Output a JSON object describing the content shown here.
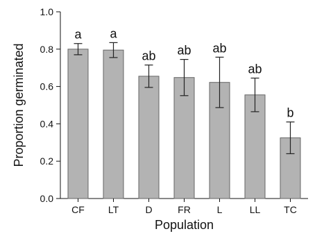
{
  "chart_data": {
    "type": "bar",
    "xlabel": "Population",
    "ylabel": "Proportion germinated",
    "ylim": [
      0,
      1.0
    ],
    "yticks": [
      0.0,
      0.2,
      0.4,
      0.6,
      0.8,
      1.0
    ],
    "ytick_labels": [
      "0.0",
      "0.2",
      "0.4",
      "0.6",
      "0.8",
      "1.0"
    ],
    "categories": [
      "CF",
      "LT",
      "D",
      "FR",
      "L",
      "LL",
      "TC"
    ],
    "values": [
      0.8,
      0.795,
      0.655,
      0.648,
      0.622,
      0.555,
      0.325
    ],
    "errors": [
      0.03,
      0.04,
      0.06,
      0.097,
      0.135,
      0.09,
      0.085
    ],
    "significance_labels": [
      "a",
      "a",
      "ab",
      "ab",
      "ab",
      "ab",
      "b"
    ],
    "grid": false,
    "bar_color": "#b3b3b3",
    "bar_edge_color": "#666666"
  }
}
